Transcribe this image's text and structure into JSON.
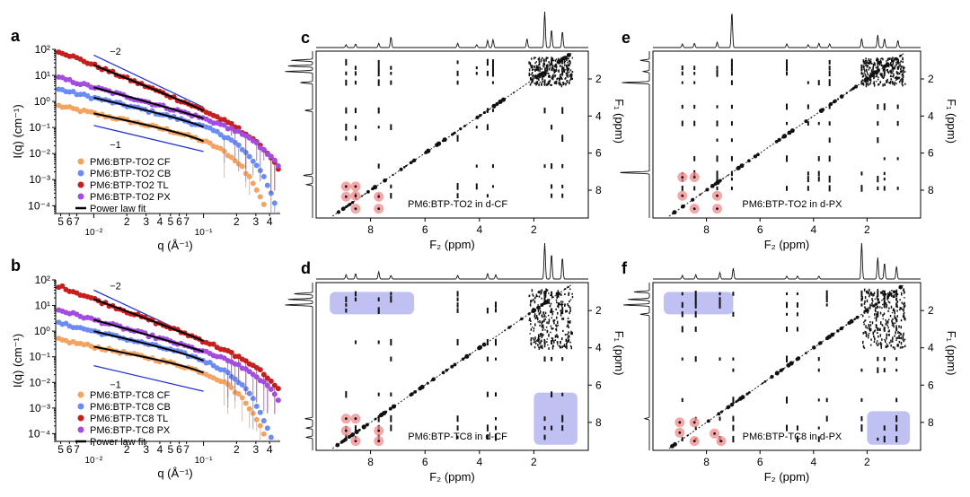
{
  "figure": {
    "panel_letters": [
      "a",
      "b",
      "c",
      "d",
      "e",
      "f"
    ]
  },
  "chart_data": [
    {
      "id": "a",
      "type": "scatter",
      "xscale": "log",
      "yscale": "log",
      "xlabel": "q (Å⁻¹)",
      "ylabel": "I(q) (cm⁻¹)",
      "xlim": [
        0.0045,
        0.5
      ],
      "ylim": [
        5e-05,
        100
      ],
      "x_tick_labels": [
        "5",
        "6",
        "7",
        "10⁻²",
        "2",
        "3",
        "4",
        "5",
        "6",
        "7",
        "10⁻¹",
        "2",
        "3",
        "4"
      ],
      "y_tick_labels": [
        "10²",
        "10¹",
        "10⁰",
        "10⁻¹",
        "10⁻²",
        "10⁻³",
        "10⁻⁴"
      ],
      "annotations": [
        "−2",
        "−1"
      ],
      "guide_lines": [
        {
          "label": "−2",
          "x": [
            0.01,
            0.1
          ],
          "y": [
            60,
            0.6
          ]
        },
        {
          "label": "−1",
          "x": [
            0.01,
            0.1
          ],
          "y": [
            0.12,
            0.012
          ]
        }
      ],
      "series": [
        {
          "name": "PM6:BTP-TO2 CF",
          "color": "#f4a460",
          "I0": 0.35,
          "alpha": 0.9,
          "qc": 0.16,
          "fit": [
            0.01,
            0.1
          ]
        },
        {
          "name": "PM6:BTP-TO2 CB",
          "color": "#6b8cf5",
          "I0": 1.4,
          "alpha": 1.0,
          "qc": 0.19,
          "fit": [
            0.01,
            0.1
          ]
        },
        {
          "name": "PM6:BTP-TO2 TL",
          "color": "#c81e1e",
          "I0": 25.0,
          "alpha": 1.7,
          "qc": 0.3,
          "fit": [
            0.01,
            0.1
          ]
        },
        {
          "name": "PM6:BTP-TO2 PX",
          "color": "#a44be0",
          "I0": 3.5,
          "alpha": 1.15,
          "qc": 0.3,
          "fit": [
            0.01,
            0.1
          ]
        }
      ],
      "legend_fit_label": "Power law fit"
    },
    {
      "id": "b",
      "type": "scatter",
      "xscale": "log",
      "yscale": "log",
      "xlabel": "q (Å⁻¹)",
      "ylabel": "I(q) (cm⁻¹)",
      "xlim": [
        0.0045,
        0.5
      ],
      "ylim": [
        5e-05,
        100
      ],
      "x_tick_labels": [
        "5",
        "6",
        "7",
        "10⁻²",
        "2",
        "3",
        "4",
        "5",
        "6",
        "7",
        "10⁻¹",
        "2",
        "3",
        "4"
      ],
      "y_tick_labels": [
        "10²",
        "10¹",
        "10⁰",
        "10⁻¹",
        "10⁻²",
        "10⁻³",
        "10⁻⁴"
      ],
      "annotations": [
        "−2",
        "−1"
      ],
      "guide_lines": [
        {
          "label": "−2",
          "x": [
            0.01,
            0.1
          ],
          "y": [
            40,
            0.4
          ]
        },
        {
          "label": "−1",
          "x": [
            0.01,
            0.1
          ],
          "y": [
            0.045,
            0.0045
          ]
        }
      ],
      "series": [
        {
          "name": "PM6:BTP-TC8 CF",
          "color": "#f4a460",
          "I0": 0.25,
          "alpha": 0.85,
          "qc": 0.16,
          "fit": [
            0.01,
            0.1
          ]
        },
        {
          "name": "PM6:BTP-TC8 CB",
          "color": "#6b8cf5",
          "I0": 1.0,
          "alpha": 1.0,
          "qc": 0.17,
          "fit": [
            0.01,
            0.1
          ]
        },
        {
          "name": "PM6:BTP-TC8 TL",
          "color": "#c81e1e",
          "I0": 18.0,
          "alpha": 1.6,
          "qc": 0.35,
          "fit": [
            0.01,
            0.1
          ]
        },
        {
          "name": "PM6:BTP-TC8 PX",
          "color": "#a44be0",
          "I0": 2.8,
          "alpha": 1.2,
          "qc": 0.3,
          "fit": [
            0.01,
            0.1
          ]
        }
      ],
      "legend_fit_label": "Power law fit"
    },
    {
      "id": "c",
      "type": "heatmap",
      "title": "PM6:BTP-TO2 in d-CF",
      "xlabel": "F₂ (ppm)",
      "ylabel": "F₁ (ppm)",
      "xlim": [
        10,
        0
      ],
      "ylim": [
        0.5,
        9.5
      ],
      "x_tick_labels": [
        "8",
        "6",
        "4",
        "2"
      ],
      "y_tick_labels": [
        "2",
        "4",
        "6",
        "8"
      ],
      "columns_ppm": [
        8.9,
        8.55,
        7.7,
        7.25,
        4.8,
        4.1,
        3.7,
        3.5,
        1.6,
        1.35,
        0.95
      ],
      "rows_ppm": [
        1.1,
        1.4,
        1.7,
        2.2,
        3.7,
        4.6,
        5.2,
        6.7,
        7.8,
        8.3
      ],
      "highlight_circles": [
        [
          8.9,
          7.8
        ],
        [
          8.55,
          7.8
        ],
        [
          8.9,
          8.35
        ],
        [
          8.55,
          9.0
        ],
        [
          7.7,
          8.35
        ],
        [
          7.7,
          9.0
        ],
        [
          8.55,
          8.3
        ]
      ],
      "highlight_boxes": [],
      "top_peaks": [
        [
          8.9,
          0.08
        ],
        [
          8.55,
          0.1
        ],
        [
          7.7,
          0.12
        ],
        [
          7.25,
          0.3
        ],
        [
          4.8,
          0.12
        ],
        [
          4.1,
          0.08
        ],
        [
          3.7,
          0.2
        ],
        [
          3.5,
          0.22
        ],
        [
          2.25,
          0.25
        ],
        [
          1.6,
          1.0
        ],
        [
          1.35,
          0.5
        ],
        [
          0.95,
          0.45
        ]
      ],
      "left_peaks": [
        [
          1.0,
          0.7
        ],
        [
          1.3,
          0.8
        ],
        [
          1.6,
          0.9
        ],
        [
          2.2,
          0.4
        ],
        [
          3.7,
          0.25
        ],
        [
          7.2,
          0.3
        ],
        [
          7.7,
          0.2
        ]
      ]
    },
    {
      "id": "d",
      "type": "heatmap",
      "title": "PM6:BTP-TC8 in d-CF",
      "xlabel": "F₂ (ppm)",
      "ylabel": "F₁ (ppm)",
      "xlim": [
        10,
        0
      ],
      "ylim": [
        0.5,
        9.5
      ],
      "x_tick_labels": [
        "8",
        "6",
        "4",
        "2"
      ],
      "y_tick_labels": [
        "2",
        "4",
        "6",
        "8"
      ],
      "columns_ppm": [
        8.9,
        8.55,
        7.7,
        7.25,
        4.8,
        3.7,
        3.4,
        1.6,
        1.35,
        0.95
      ],
      "rows_ppm": [
        1.1,
        1.4,
        1.7,
        2.0,
        3.7,
        4.6,
        6.5,
        7.8,
        8.3,
        8.8
      ],
      "highlight_circles": [
        [
          8.9,
          7.8
        ],
        [
          8.55,
          7.8
        ],
        [
          8.9,
          8.45
        ],
        [
          8.55,
          9.0
        ],
        [
          7.7,
          8.45
        ],
        [
          7.7,
          9.0
        ]
      ],
      "highlight_boxes": [
        [
          9.5,
          6.4,
          1.0,
          2.2
        ],
        [
          2.0,
          0.4,
          6.4,
          9.2
        ]
      ],
      "top_peaks": [
        [
          8.9,
          0.12
        ],
        [
          8.55,
          0.15
        ],
        [
          7.7,
          0.2
        ],
        [
          7.25,
          0.1
        ],
        [
          4.8,
          0.1
        ],
        [
          3.7,
          0.15
        ],
        [
          3.4,
          0.12
        ],
        [
          1.6,
          1.0
        ],
        [
          1.35,
          0.7
        ],
        [
          0.95,
          0.6
        ]
      ],
      "left_peaks": [
        [
          1.1,
          0.6
        ],
        [
          1.4,
          0.8
        ],
        [
          1.7,
          0.9
        ],
        [
          7.8,
          0.25
        ],
        [
          8.3,
          0.2
        ],
        [
          8.8,
          0.2
        ]
      ]
    },
    {
      "id": "e",
      "type": "heatmap",
      "title": "PM6:BTP-TO2 in d-PX",
      "xlabel": "F₂ (ppm)",
      "ylabel": "F₁ (ppm)",
      "xlim": [
        10,
        0
      ],
      "ylim": [
        0.5,
        9.5
      ],
      "x_tick_labels": [
        "8",
        "6",
        "4",
        "2"
      ],
      "y_tick_labels": [
        "2",
        "4",
        "6",
        "8"
      ],
      "columns_ppm": [
        8.9,
        8.45,
        7.6,
        7.05,
        5.0,
        4.2,
        3.8,
        3.4,
        2.2,
        1.6,
        1.35,
        0.85
      ],
      "rows_ppm": [
        1.1,
        1.4,
        1.7,
        2.2,
        3.5,
        4.4,
        5.3,
        6.3,
        7.1,
        7.4,
        7.9
      ],
      "highlight_circles": [
        [
          8.9,
          7.3
        ],
        [
          8.45,
          7.3
        ],
        [
          8.9,
          8.3
        ],
        [
          8.45,
          9.0
        ],
        [
          7.6,
          8.3
        ],
        [
          7.6,
          9.0
        ]
      ],
      "highlight_boxes": [],
      "top_peaks": [
        [
          8.9,
          0.1
        ],
        [
          8.45,
          0.12
        ],
        [
          7.6,
          0.15
        ],
        [
          7.05,
          1.0
        ],
        [
          5.0,
          0.1
        ],
        [
          4.2,
          0.08
        ],
        [
          3.8,
          0.12
        ],
        [
          3.4,
          0.1
        ],
        [
          2.2,
          0.25
        ],
        [
          1.6,
          0.35
        ],
        [
          1.35,
          0.25
        ],
        [
          0.85,
          0.2
        ]
      ],
      "left_peaks": [
        [
          1.0,
          0.3
        ],
        [
          1.6,
          0.2
        ],
        [
          2.2,
          0.9
        ],
        [
          7.05,
          1.0
        ]
      ]
    },
    {
      "id": "f",
      "type": "heatmap",
      "title": "PM6:BTP-TC8 in d-PX",
      "xlabel": "F₂ (ppm)",
      "ylabel": "F₁ (ppm)",
      "xlim": [
        10,
        0
      ],
      "ylim": [
        0.5,
        9.5
      ],
      "x_tick_labels": [
        "8",
        "6",
        "4",
        "2"
      ],
      "y_tick_labels": [
        "2",
        "4",
        "6",
        "8"
      ],
      "columns_ppm": [
        8.9,
        8.4,
        7.5,
        7.0,
        5.0,
        4.6,
        3.8,
        3.5,
        2.2,
        1.6,
        1.35,
        0.9
      ],
      "rows_ppm": [
        1.1,
        1.4,
        1.7,
        2.2,
        3.0,
        4.6,
        5.2,
        6.8,
        7.8,
        8.3,
        8.9
      ],
      "highlight_circles": [
        [
          9.0,
          8.0
        ],
        [
          8.45,
          8.0
        ],
        [
          9.0,
          8.55
        ],
        [
          8.45,
          9.0
        ],
        [
          7.45,
          9.0
        ],
        [
          7.7,
          8.6
        ]
      ],
      "highlight_boxes": [
        [
          9.6,
          7.0,
          1.0,
          2.2
        ],
        [
          2.0,
          0.4,
          7.4,
          9.2
        ]
      ],
      "top_peaks": [
        [
          8.9,
          0.1
        ],
        [
          8.4,
          0.12
        ],
        [
          7.5,
          0.18
        ],
        [
          7.0,
          0.3
        ],
        [
          5.0,
          0.08
        ],
        [
          4.6,
          0.08
        ],
        [
          3.8,
          0.08
        ],
        [
          2.2,
          1.0
        ],
        [
          1.6,
          0.6
        ],
        [
          1.35,
          0.45
        ],
        [
          0.9,
          0.35
        ]
      ],
      "left_peaks": [
        [
          1.0,
          0.5
        ],
        [
          1.4,
          0.7
        ],
        [
          1.7,
          0.85
        ],
        [
          2.2,
          0.3
        ],
        [
          7.8,
          0.15
        ]
      ]
    }
  ]
}
